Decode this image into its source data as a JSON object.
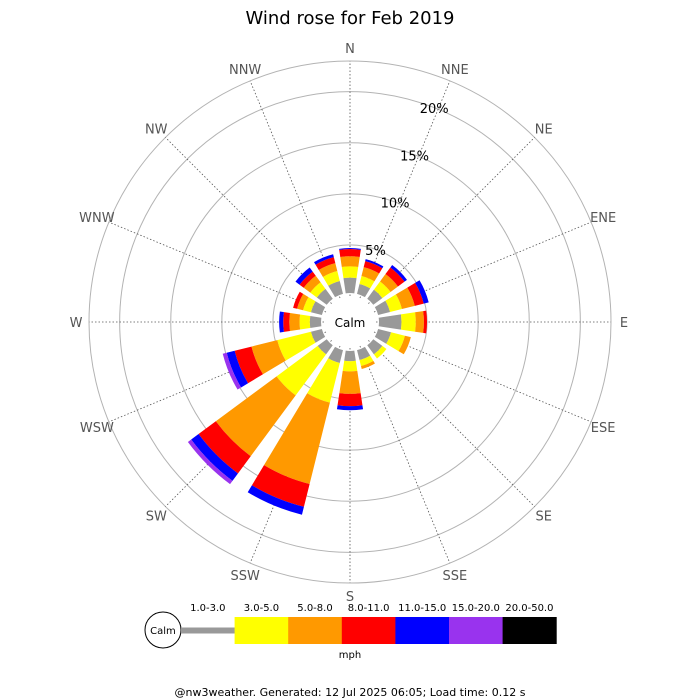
{
  "chart_data": {
    "type": "wind-rose",
    "title": "Wind rose for Feb 2019",
    "calm_label": "Calm",
    "directions": [
      "N",
      "NNE",
      "NE",
      "ENE",
      "E",
      "ESE",
      "SE",
      "SSE",
      "S",
      "SSW",
      "SW",
      "WSW",
      "W",
      "WNW",
      "NW",
      "NNW"
    ],
    "rings": [
      "5%",
      "10%",
      "15%",
      "20%"
    ],
    "ring_values": [
      5,
      10,
      15,
      20
    ],
    "r_max": 23,
    "speed_bins": [
      "1.0-3.0",
      "3.0-5.0",
      "5.0-8.0",
      "8.0-11.0",
      "11.0-15.0",
      "15.0-20.0",
      "20.0-50.0"
    ],
    "bin_colors": [
      "#999999",
      "#ffff00",
      "#ff9900",
      "#ff0000",
      "#0000ff",
      "#9933ee",
      "#000000"
    ],
    "unit": "mph",
    "series": [
      {
        "dir": "N",
        "values": [
          1.5,
          1.1,
          1.0,
          0.7,
          0.1,
          0.0,
          0.0
        ]
      },
      {
        "dir": "NNE",
        "values": [
          1.0,
          0.8,
          0.9,
          0.6,
          0.2,
          0.0,
          0.0
        ]
      },
      {
        "dir": "NE",
        "values": [
          1.1,
          1.0,
          0.9,
          0.8,
          0.3,
          0.0,
          0.0
        ]
      },
      {
        "dir": "ENE",
        "values": [
          1.2,
          1.2,
          1.3,
          0.9,
          0.5,
          0.0,
          0.0
        ]
      },
      {
        "dir": "E",
        "values": [
          2.2,
          1.4,
          0.8,
          0.3,
          0.0,
          0.0,
          0.0
        ]
      },
      {
        "dir": "ESE",
        "values": [
          1.3,
          1.4,
          0.6,
          0.0,
          0.0,
          0.0,
          0.0
        ]
      },
      {
        "dir": "SE",
        "values": [
          1.1,
          0.5,
          0.0,
          0.0,
          0.0,
          0.0,
          0.0
        ]
      },
      {
        "dir": "SSE",
        "values": [
          1.0,
          0.6,
          0.3,
          0.0,
          0.0,
          0.0,
          0.0
        ]
      },
      {
        "dir": "S",
        "values": [
          1.0,
          1.0,
          2.2,
          1.2,
          0.4,
          0.0,
          0.0
        ]
      },
      {
        "dir": "SSW",
        "values": [
          1.3,
          4.0,
          8.2,
          2.3,
          0.8,
          0.0,
          0.0
        ]
      },
      {
        "dir": "SW",
        "values": [
          1.1,
          5.0,
          7.4,
          2.1,
          0.9,
          0.4,
          0.0
        ]
      },
      {
        "dir": "WSW",
        "values": [
          1.1,
          3.4,
          2.6,
          1.7,
          0.8,
          0.4,
          0.0
        ]
      },
      {
        "dir": "W",
        "values": [
          1.1,
          1.0,
          1.0,
          0.6,
          0.4,
          0.0,
          0.0
        ]
      },
      {
        "dir": "WNW",
        "values": [
          1.1,
          0.8,
          0.6,
          0.4,
          0.0,
          0.0,
          0.0
        ]
      },
      {
        "dir": "NW",
        "values": [
          1.2,
          0.8,
          0.8,
          0.5,
          0.5,
          0.0,
          0.0
        ]
      },
      {
        "dir": "NNW",
        "values": [
          1.3,
          1.0,
          0.8,
          0.6,
          0.3,
          0.0,
          0.0
        ]
      }
    ]
  },
  "footer": "@nw3weather. Generated: 12 Jul 2025 06:05; Load time: 0.12 s"
}
